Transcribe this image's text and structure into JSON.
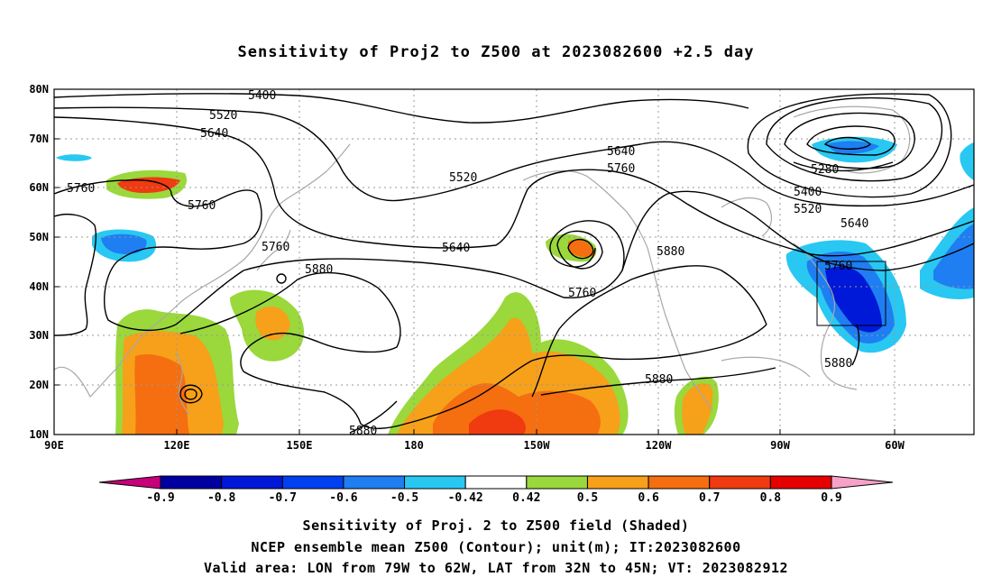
{
  "title": "Sensitivity of Proj2 to Z500 at 2023082600 +2.5 day",
  "map": {
    "lat_labels": [
      "80N",
      "70N",
      "60N",
      "50N",
      "40N",
      "30N",
      "20N",
      "10N"
    ],
    "lon_labels": [
      "90E",
      "120E",
      "150E",
      "180",
      "150W",
      "120W",
      "90W",
      "60W"
    ],
    "contour_labels": [
      "5400",
      "5520",
      "5640",
      "5760",
      "5760",
      "5520",
      "5640",
      "5760",
      "5640",
      "5760",
      "5880",
      "5880",
      "5880",
      "5880",
      "5760",
      "5640",
      "5520",
      "5400",
      "5280",
      "5760",
      "5880"
    ],
    "valid_box": {
      "lon_from": "79W",
      "lon_to": "62W",
      "lat_from": "32N",
      "lat_to": "45N"
    }
  },
  "colorbar": {
    "labels": [
      "-0.9",
      "-0.8",
      "-0.7",
      "-0.6",
      "-0.5",
      "-0.42",
      "0.42",
      "0.5",
      "0.6",
      "0.7",
      "0.8",
      "0.9"
    ],
    "colors": [
      "#c8007a",
      "#0000a0",
      "#0018d8",
      "#0040f0",
      "#1f7ef2",
      "#28c8f2",
      "#ffffff",
      "#9ad83c",
      "#f7a01a",
      "#f56e10",
      "#f03a10",
      "#e60000",
      "#f7a0c8"
    ]
  },
  "captions": {
    "line1": "Sensitivity of Proj. 2 to Z500 field (Shaded)",
    "line2": "NCEP ensemble mean Z500 (Contour); unit(m); IT:2023082600",
    "line3": "Valid area: LON from 79W to 62W, LAT from 32N to 45N; VT: 2023082912"
  }
}
